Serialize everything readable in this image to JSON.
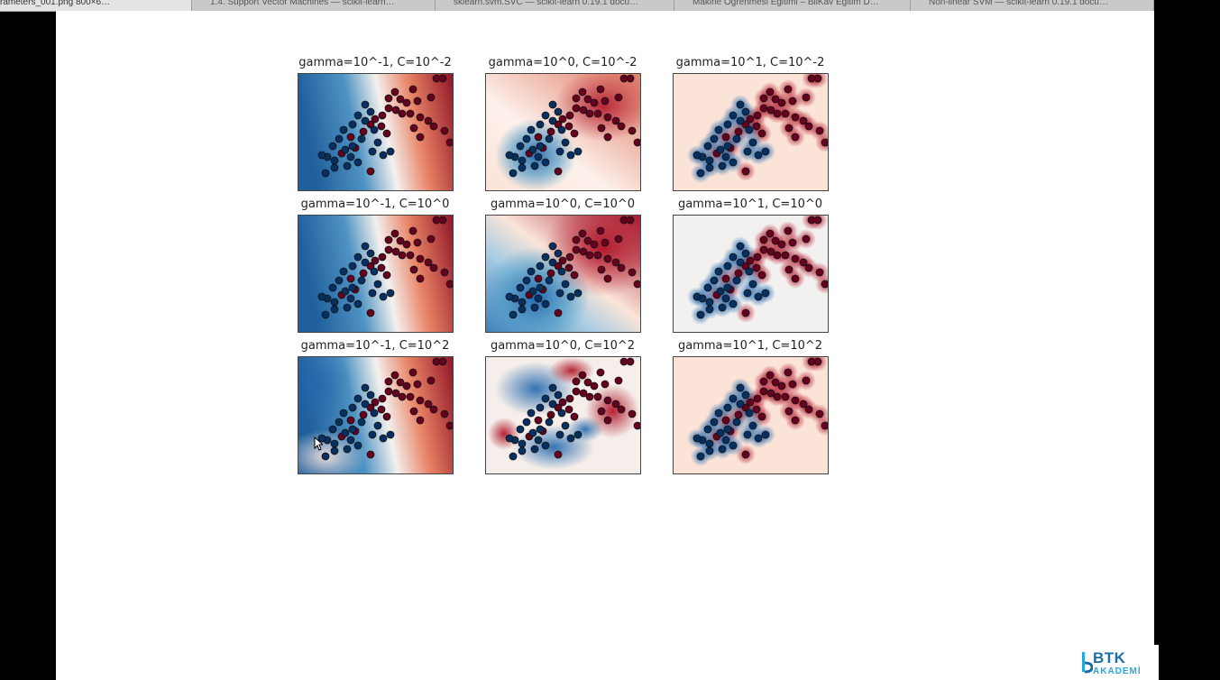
{
  "tabs": [
    {
      "label": "rameters_001.png 800×6…",
      "active": true
    },
    {
      "label": "1.4. Support Vector Machines — scikit-learn…",
      "active": false
    },
    {
      "label": "sklearn.svm.SVC — scikit-learn 0.19.1 docu…",
      "active": false
    },
    {
      "label": "Makine Öğrenmesi Eğitimi – BilKav Eğitim D…",
      "active": false
    },
    {
      "label": "Non-linear SVM — scikit-learn 0.19.1 docu…",
      "active": false
    }
  ],
  "figure": {
    "plots": [
      {
        "title": "gamma=10^-1, C=10^-2",
        "style": "smooth-strong"
      },
      {
        "title": "gamma=10^0, C=10^-2",
        "style": "medium-faint"
      },
      {
        "title": "gamma=10^1, C=10^-2",
        "style": "local-faint"
      },
      {
        "title": "gamma=10^-1, C=10^0",
        "style": "smooth-strong"
      },
      {
        "title": "gamma=10^0, C=10^0",
        "style": "medium-strong"
      },
      {
        "title": "gamma=10^1, C=10^0",
        "style": "local-neutral"
      },
      {
        "title": "gamma=10^-1, C=10^2",
        "style": "smooth-complex"
      },
      {
        "title": "gamma=10^0, C=10^2",
        "style": "medium-complex"
      },
      {
        "title": "gamma=10^1, C=10^2",
        "style": "local-faint"
      }
    ],
    "colors": {
      "class_red": "#67001f",
      "class_blue": "#053061",
      "field_red": "#b2182b",
      "field_blue": "#2166ac"
    }
  },
  "watermark": {
    "brand": "BTK",
    "sub": "AKADEMİ"
  }
}
